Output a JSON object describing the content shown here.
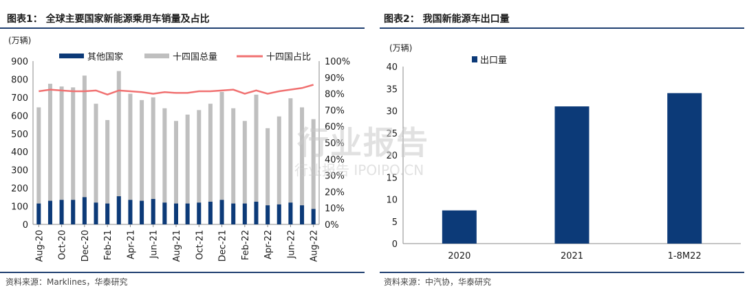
{
  "panel1": {
    "title": "图表1：  全球主要国家新能源乘用车销量及占比",
    "unit": "(万辆)",
    "source": "资料来源：Marklines，华泰研究"
  },
  "panel2": {
    "title": "图表2：  我国新能源车出口量",
    "unit": "(万辆)",
    "source": "资料来源：中汽协，华泰研究"
  },
  "watermark": {
    "main": "行业报告",
    "sub": "行业报告 IPOIPO.CN"
  },
  "colors": {
    "navy": "#0c3a78",
    "gray": "#bfbfbf",
    "red": "#f07070",
    "rule": "#1f3f70"
  },
  "chart_data": [
    {
      "type": "bar",
      "stacked": true,
      "categories": [
        "Aug-20",
        "Sep-20",
        "Oct-20",
        "Nov-20",
        "Dec-20",
        "Jan-21",
        "Feb-21",
        "Mar-21",
        "Apr-21",
        "May-21",
        "Jun-21",
        "Jul-21",
        "Aug-21",
        "Sep-21",
        "Oct-21",
        "Nov-21",
        "Dec-21",
        "Jan-22",
        "Feb-22",
        "Mar-22",
        "Apr-22",
        "May-22",
        "Jun-22",
        "Jul-22",
        "Aug-22"
      ],
      "x_tick_labels": [
        "Aug-20",
        "Oct-20",
        "Dec-20",
        "Feb-21",
        "Apr-21",
        "Jun-21",
        "Aug-21",
        "Oct-21",
        "Dec-21",
        "Feb-22",
        "Apr-22",
        "Jun-22",
        "Aug-22"
      ],
      "series": [
        {
          "name": "其他国家",
          "color": "#0c3a78",
          "values": [
            115,
            130,
            135,
            135,
            150,
            120,
            115,
            155,
            135,
            130,
            140,
            120,
            115,
            115,
            120,
            125,
            135,
            115,
            115,
            125,
            105,
            110,
            120,
            105,
            85
          ]
        },
        {
          "name": "十四国总量",
          "color": "#bfbfbf",
          "values": [
            645,
            775,
            760,
            755,
            820,
            665,
            575,
            845,
            720,
            685,
            700,
            640,
            570,
            605,
            630,
            665,
            730,
            640,
            570,
            715,
            530,
            595,
            695,
            645,
            580
          ]
        }
      ],
      "line_series": {
        "name": "十四国占比",
        "color": "#f07070",
        "axis": "right",
        "values": [
          81.5,
          82.5,
          82,
          81.5,
          81.5,
          82,
          79.5,
          82,
          81.5,
          81,
          80,
          81,
          80.5,
          80.5,
          81.5,
          81.5,
          82,
          82.5,
          80,
          82,
          80,
          81.5,
          82.5,
          83.5,
          85.5
        ]
      },
      "ylim": [
        0,
        900
      ],
      "yticks": [
        0,
        100,
        200,
        300,
        400,
        500,
        600,
        700,
        800,
        900
      ],
      "y2lim": [
        0,
        100
      ],
      "y2ticks": [
        "0%",
        "10%",
        "20%",
        "30%",
        "40%",
        "50%",
        "60%",
        "70%",
        "80%",
        "90%",
        "100%"
      ],
      "legend_position": "top"
    },
    {
      "type": "bar",
      "categories": [
        "2020",
        "2021",
        "1-8M22"
      ],
      "series": [
        {
          "name": "出口量",
          "color": "#0c3a78",
          "values": [
            7.5,
            31,
            34
          ]
        }
      ],
      "ylim": [
        0,
        40
      ],
      "yticks": [
        0,
        5,
        10,
        15,
        20,
        25,
        30,
        35,
        40
      ],
      "legend_position": "top-left"
    }
  ]
}
